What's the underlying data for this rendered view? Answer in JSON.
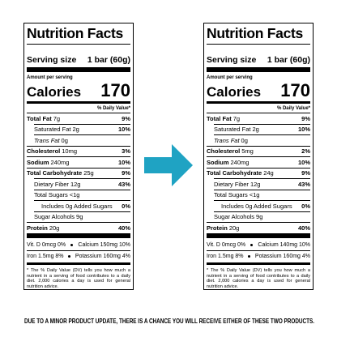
{
  "labels": [
    {
      "title": "Nutrition Facts",
      "serving_size_label": "Serving size",
      "serving_size": "1 bar (60g)",
      "amount_per_serving": "Amount per serving",
      "calories_label": "Calories",
      "calories": "170",
      "dv_header": "% Daily Value*",
      "rows": [
        {
          "name": "Total Fat",
          "amount": "7g",
          "dv": "9%"
        },
        {
          "name": "Saturated Fat",
          "amount": "2g",
          "dv": "10%"
        },
        {
          "name": "Trans Fat",
          "amount": "0g"
        },
        {
          "name": "Cholesterol",
          "amount": "10mg",
          "dv": "3%"
        },
        {
          "name": "Sodium",
          "amount": "240mg",
          "dv": "10%"
        },
        {
          "name": "Total Carbohydrate",
          "amount": "25g",
          "dv": "9%"
        },
        {
          "name": "Dietary Fiber",
          "amount": "12g",
          "dv": "43%"
        },
        {
          "name": "Total Sugars",
          "amount": "<1g"
        },
        {
          "name": "Includes 0g Added Sugars",
          "dv": "0%"
        },
        {
          "name": "Sugar Alcohols",
          "amount": "9g"
        },
        {
          "name": "Protein",
          "amount": "20g",
          "dv": "40%"
        }
      ],
      "vitamins": [
        [
          "Vit. D 0mcg 0%",
          "Calcium 150mg 10%"
        ],
        [
          "Iron 1.5mg 8%",
          "Potassium 160mg 4%"
        ]
      ],
      "footnote": "* The % Daily Value (DV) tells you how much a nutrient in a serving of food contributes to a daily diet. 2,000 calories a day is used for general nutrition advice."
    },
    {
      "title": "Nutrition Facts",
      "serving_size_label": "Serving size",
      "serving_size": "1 bar (60g)",
      "amount_per_serving": "Amount per serving",
      "calories_label": "Calories",
      "calories": "170",
      "dv_header": "% Daily Value*",
      "rows": [
        {
          "name": "Total Fat",
          "amount": "7g",
          "dv": "9%"
        },
        {
          "name": "Saturated Fat",
          "amount": "2g",
          "dv": "10%"
        },
        {
          "name": "Trans Fat",
          "amount": "0g"
        },
        {
          "name": "Cholesterol",
          "amount": "5mg",
          "dv": "2%"
        },
        {
          "name": "Sodium",
          "amount": "240mg",
          "dv": "10%"
        },
        {
          "name": "Total Carbohydrate",
          "amount": "24g",
          "dv": "9%"
        },
        {
          "name": "Dietary Fiber",
          "amount": "12g",
          "dv": "43%"
        },
        {
          "name": "Total Sugars",
          "amount": "<1g"
        },
        {
          "name": "Includes 0g Added Sugars",
          "dv": "0%"
        },
        {
          "name": "Sugar Alcohols",
          "amount": "9g"
        },
        {
          "name": "Protein",
          "amount": "20g",
          "dv": "40%"
        }
      ],
      "vitamins": [
        [
          "Vit. D 0mcg 0%",
          "Calcium 140mg 10%"
        ],
        [
          "Iron 1.5mg 8%",
          "Potassium 160mg 4%"
        ]
      ],
      "footnote": "* The % Daily Value (DV) tells you how much a nutrient in a serving of food contributes to a daily diet. 2,000 calories a day is used for general nutrition advice."
    }
  ],
  "footer": "DUE TO A MINOR PRODUCT UPDATE, THERE IS A CHANCE YOU WILL RECEIVE EITHER OF THESE TWO PRODUCTS."
}
